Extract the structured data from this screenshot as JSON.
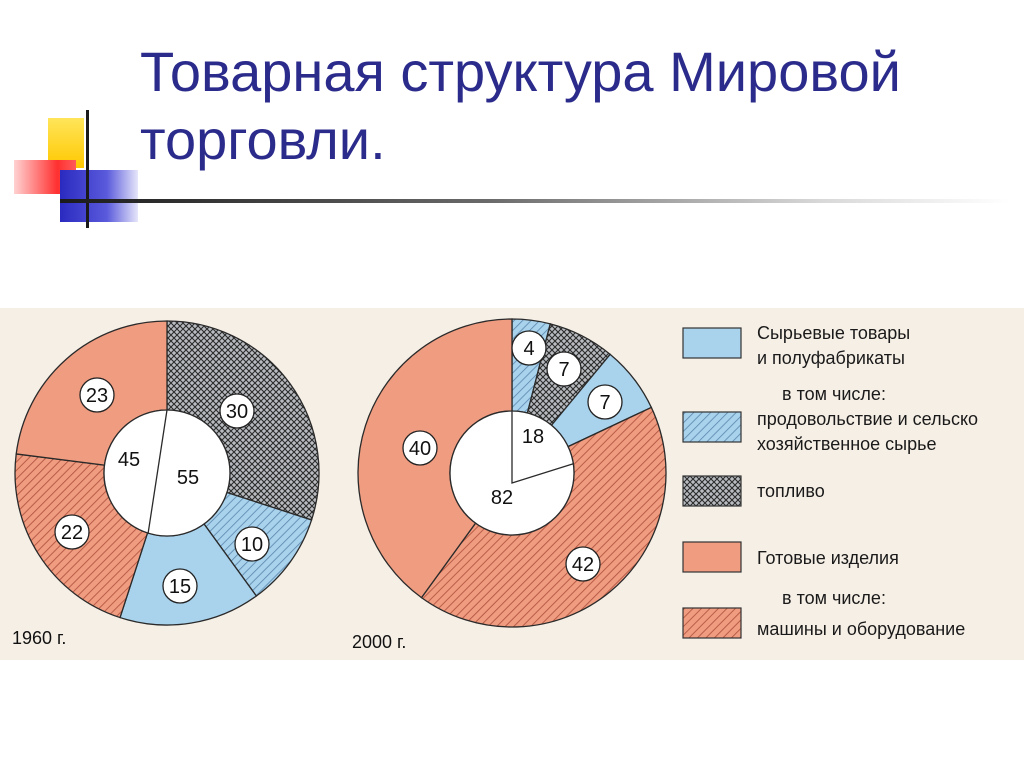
{
  "slide": {
    "title": "Товарная структура Мировой торговли."
  },
  "colors": {
    "title": "#2b2b8c",
    "raw_materials": "#a9d2ec",
    "food_hatch": "#5a86ad",
    "fuel_hatch": "#2b2b2b",
    "manufactured": "#ef9c80",
    "machinery_hatch": "#b45642",
    "panel_bg": "#f6efe6",
    "deco_yellow": "#ffd200",
    "deco_red": "#ff3b3b",
    "deco_blue": "#3232c8"
  },
  "chart_data": [
    {
      "type": "pie",
      "variant": "donut",
      "year_label": "1960 г.",
      "inner": [
        {
          "key": "manufactured",
          "label": "45",
          "value": 45
        },
        {
          "key": "raw",
          "label": "55",
          "value": 55
        }
      ],
      "slices": [
        {
          "key": "fuel",
          "value": 30,
          "label": "30"
        },
        {
          "key": "food",
          "value": 10,
          "label": "10"
        },
        {
          "key": "raw_other",
          "value": 15,
          "label": "15"
        },
        {
          "key": "machinery",
          "value": 22,
          "label": "22"
        },
        {
          "key": "manufactured_other",
          "value": 23,
          "label": "23"
        }
      ]
    },
    {
      "type": "pie",
      "variant": "donut",
      "year_label": "2000 г.",
      "inner": [
        {
          "key": "raw",
          "label": "18",
          "value": 18
        },
        {
          "key": "manufactured",
          "label": "82",
          "value": 82
        }
      ],
      "slices": [
        {
          "key": "food",
          "value": 4,
          "label": "4"
        },
        {
          "key": "fuel",
          "value": 7,
          "label": "7"
        },
        {
          "key": "raw_other",
          "value": 7,
          "label": "7"
        },
        {
          "key": "machinery",
          "value": 42,
          "label": "42"
        },
        {
          "key": "manufactured_other",
          "value": 40,
          "label": "40"
        }
      ]
    }
  ],
  "legend": {
    "position": "right",
    "raw": {
      "line1": "Сырьевые товары",
      "line2": "и полуфабрикаты"
    },
    "raw_subhead": "в том числе:",
    "food": {
      "line1": "продовольствие и сельско",
      "line2": "хозяйственное сырье"
    },
    "fuel": "топливо",
    "manufactured": "Готовые изделия",
    "manufactured_subhead": "в том числе:",
    "machinery": "машины и оборудование"
  }
}
